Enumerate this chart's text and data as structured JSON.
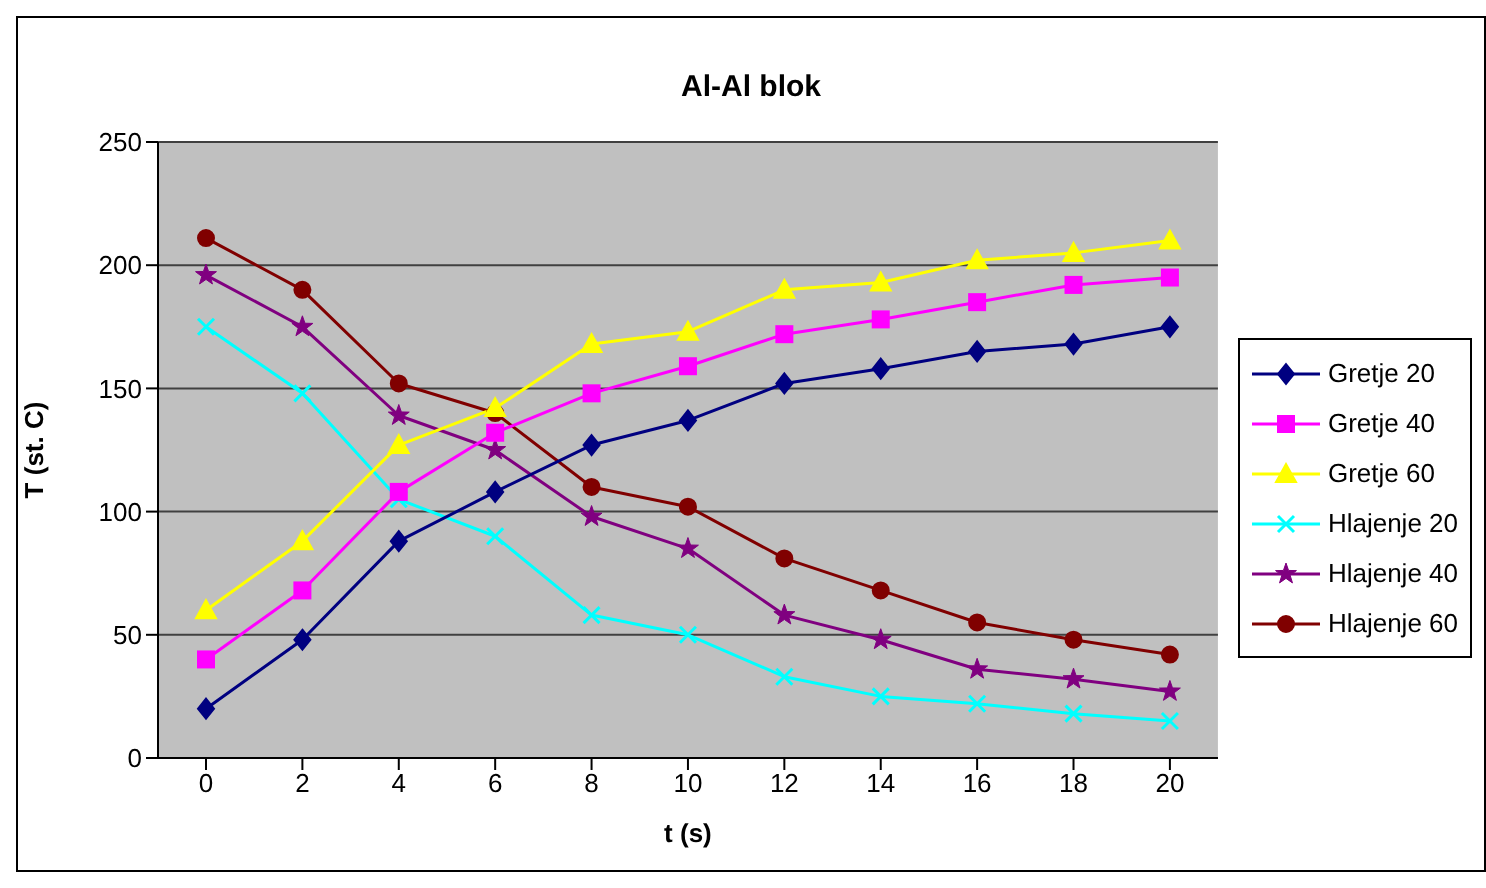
{
  "chart_data": {
    "type": "line",
    "title": "Al-Al blok",
    "xlabel": "t (s)",
    "ylabel": "T (st. C)",
    "categories": [
      "0",
      "2",
      "4",
      "6",
      "8",
      "10",
      "12",
      "14",
      "16",
      "18",
      "20"
    ],
    "ylim": [
      0,
      250
    ],
    "yticks": [
      0,
      50,
      100,
      150,
      200,
      250
    ],
    "grid": "y",
    "legend": "right",
    "series": [
      {
        "name": "Gretje 20",
        "color": "#000080",
        "marker": "diamond",
        "values": [
          20,
          48,
          88,
          108,
          127,
          137,
          152,
          158,
          165,
          168,
          175
        ]
      },
      {
        "name": "Gretje 40",
        "color": "#ff00ff",
        "marker": "square",
        "values": [
          40,
          68,
          108,
          132,
          148,
          159,
          172,
          178,
          185,
          192,
          195
        ]
      },
      {
        "name": "Gretje 60",
        "color": "#ffff00",
        "marker": "triangle",
        "values": [
          60,
          88,
          127,
          142,
          168,
          173,
          190,
          193,
          202,
          205,
          210
        ]
      },
      {
        "name": "Hlajenje 20",
        "color": "#00ffff",
        "marker": "cross",
        "values": [
          175,
          148,
          105,
          90,
          58,
          50,
          33,
          25,
          22,
          18,
          15
        ]
      },
      {
        "name": "Hlajenje 40",
        "color": "#800080",
        "marker": "star",
        "values": [
          196,
          175,
          139,
          125,
          98,
          85,
          58,
          48,
          36,
          32,
          27
        ]
      },
      {
        "name": "Hlajenje 60",
        "color": "#800000",
        "marker": "circle",
        "values": [
          211,
          190,
          152,
          140,
          110,
          102,
          81,
          68,
          55,
          48,
          42
        ]
      }
    ]
  }
}
